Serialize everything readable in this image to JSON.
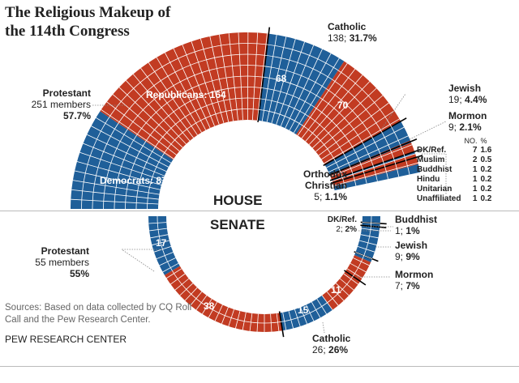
{
  "title": "The Religious Makeup of the 114th Congress",
  "colors": {
    "democrats": "#1f5f99",
    "republicans": "#c23b22"
  },
  "chart_data": [
    {
      "type": "half-donut",
      "chamber": "HOUSE",
      "total": 435,
      "segments": [
        {
          "group": "Protestant",
          "party": "D",
          "value": 87
        },
        {
          "group": "Protestant",
          "party": "R",
          "value": 164
        },
        {
          "group": "Catholic",
          "party": "D",
          "value": 68
        },
        {
          "group": "Catholic",
          "party": "R",
          "value": 70
        },
        {
          "group": "Jewish",
          "party": "D",
          "value": 18
        },
        {
          "group": "Jewish",
          "party": "R",
          "value": 1
        },
        {
          "group": "Mormon",
          "party": "D",
          "value": 1
        },
        {
          "group": "Mormon",
          "party": "R",
          "value": 8
        },
        {
          "group": "Orthodox Christian",
          "party": "D",
          "value": 2
        },
        {
          "group": "Orthodox Christian",
          "party": "R",
          "value": 3
        },
        {
          "group": "Other",
          "party": "R",
          "value": 6
        },
        {
          "group": "Other",
          "party": "D",
          "value": 7
        }
      ],
      "inner_labels": {
        "democrats": "Democrats: 87",
        "republicans": "Republicans: 164",
        "cath_d": "68",
        "cath_r": "70"
      },
      "labels": {
        "protestant": {
          "name": "Protestant",
          "count": "251 members",
          "pct": "57.7%"
        },
        "catholic": {
          "name": "Catholic",
          "count": "138;",
          "pct": "31.7%"
        },
        "jewish": {
          "name": "Jewish",
          "count": "19;",
          "pct": "4.4%"
        },
        "mormon": {
          "name": "Mormon",
          "count": "9;",
          "pct": "2.1%"
        },
        "orthodox": {
          "name": "Orthodox Christian",
          "name1": "Orthodox",
          "name2": "Christian",
          "count": "5;",
          "pct": "1.1%"
        }
      },
      "other_table": {
        "headers": [
          "NO.",
          "%"
        ],
        "rows": [
          {
            "name": "DK/Ref.",
            "no": "7",
            "pct": "1.6"
          },
          {
            "name": "Muslim",
            "no": "2",
            "pct": "0.5"
          },
          {
            "name": "Buddhist",
            "no": "1",
            "pct": "0.2"
          },
          {
            "name": "Hindu",
            "no": "1",
            "pct": "0.2"
          },
          {
            "name": "Unitarian",
            "no": "1",
            "pct": "0.2"
          },
          {
            "name": "Unaffiliated",
            "no": "1",
            "pct": "0.2"
          }
        ]
      }
    },
    {
      "type": "half-donut",
      "chamber": "SENATE",
      "total": 100,
      "segments": [
        {
          "group": "Protestant",
          "party": "D",
          "value": 17
        },
        {
          "group": "Protestant",
          "party": "R",
          "value": 38
        },
        {
          "group": "Catholic",
          "party": "D",
          "value": 15
        },
        {
          "group": "Catholic",
          "party": "R",
          "value": 11
        },
        {
          "group": "Mormon",
          "party": "R",
          "value": 6
        },
        {
          "group": "Mormon",
          "party": "D",
          "value": 1
        },
        {
          "group": "Jewish",
          "party": "D",
          "value": 9
        },
        {
          "group": "Buddhist",
          "party": "D",
          "value": 1
        },
        {
          "group": "DK/Ref.",
          "party": "D",
          "value": 2
        }
      ],
      "inner_labels": {
        "prot_d": "17",
        "prot_r": "38",
        "cath_d": "15",
        "cath_r": "11"
      },
      "labels": {
        "protestant": {
          "name": "Protestant",
          "count": "55 members",
          "pct": "55%"
        },
        "catholic": {
          "name": "Catholic",
          "count": "26;",
          "pct": "26%"
        },
        "mormon": {
          "name": "Mormon",
          "count": "7;",
          "pct": "7%"
        },
        "jewish": {
          "name": "Jewish",
          "count": "9;",
          "pct": "9%"
        },
        "buddhist": {
          "name": "Buddhist",
          "count": "1;",
          "pct": "1%"
        },
        "dkref": {
          "name": "DK/Ref.",
          "count": "2;",
          "pct": "2%"
        }
      }
    }
  ],
  "source": "Sources: Based on data collected by CQ Roll Call and the Pew Research Center.",
  "credit": "PEW RESEARCH CENTER"
}
